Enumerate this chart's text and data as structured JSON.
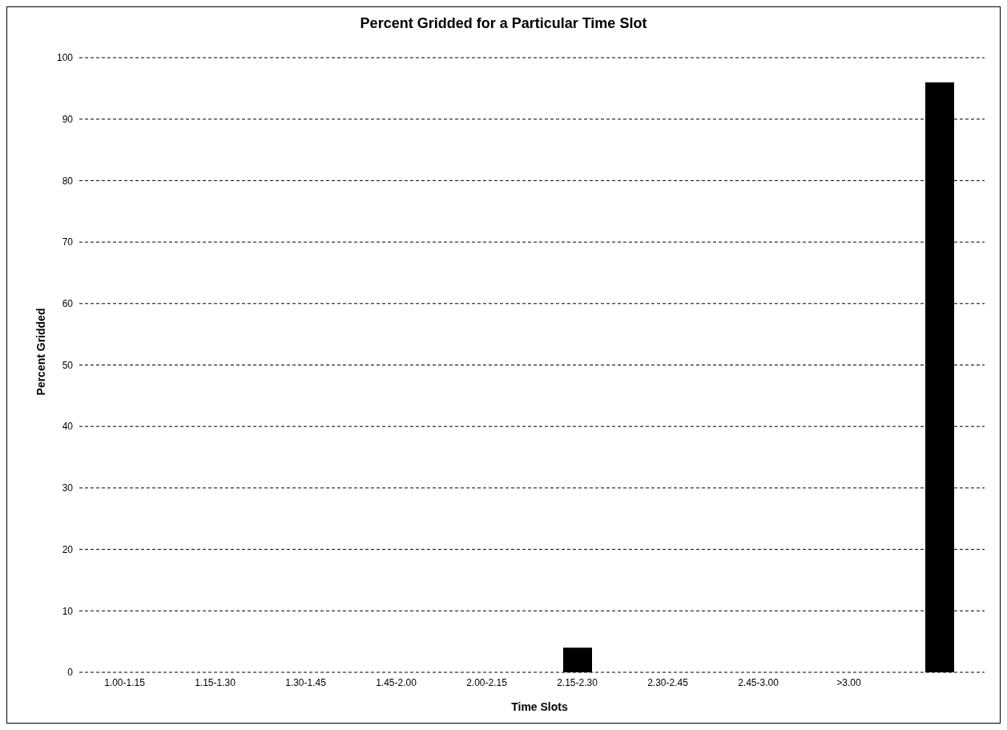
{
  "chart_data": {
    "type": "bar",
    "title": "Percent Gridded for a Particular Time Slot",
    "xlabel": "Time Slots",
    "ylabel": "Percent Gridded",
    "categories": [
      "1.00-1.15",
      "1.15-1.30",
      "1.30-1.45",
      "1.45-2.00",
      "2.00-2.15",
      "2.15-2.30",
      "2.30-2.45",
      "2.45-3.00",
      ">3.00",
      null
    ],
    "values": [
      0,
      0,
      0,
      0,
      0,
      4,
      0,
      0,
      0,
      96
    ],
    "color": "#000000",
    "ylim": [
      0,
      100
    ],
    "yticks": [
      0,
      10,
      20,
      30,
      40,
      50,
      60,
      70,
      80,
      90,
      100
    ],
    "grid": "y"
  }
}
